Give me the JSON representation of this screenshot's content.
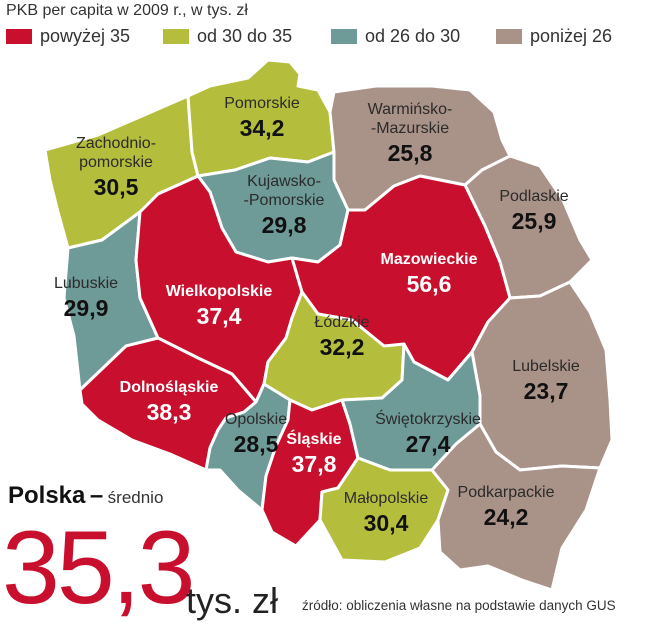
{
  "title": "PKB per capita w 2009 r., w tys. zł",
  "legend": [
    {
      "label": "powyżej 35",
      "color": "#c8102e"
    },
    {
      "label": "od 30 do 35",
      "color": "#b5bd3c"
    },
    {
      "label": "od 26 do 30",
      "color": "#6e9a97"
    },
    {
      "label": "poniżej 26",
      "color": "#a99288"
    }
  ],
  "regions": [
    {
      "id": "zachodniopomorskie",
      "name_lines": [
        "Zachodnio-",
        "pomorskie"
      ],
      "value": "30,5",
      "color": "#b5bd3c"
    },
    {
      "id": "pomorskie",
      "name_lines": [
        "Pomorskie"
      ],
      "value": "34,2",
      "color": "#b5bd3c"
    },
    {
      "id": "warminsko-mazurskie",
      "name_lines": [
        "Warmińsko-",
        "-Mazurskie"
      ],
      "value": "25,8",
      "color": "#a99288"
    },
    {
      "id": "podlaskie",
      "name_lines": [
        "Podlaskie"
      ],
      "value": "25,9",
      "color": "#a99288"
    },
    {
      "id": "kujawsko-pomorskie",
      "name_lines": [
        "Kujawsko-",
        "-Pomorskie"
      ],
      "value": "29,8",
      "color": "#6e9a97"
    },
    {
      "id": "lubuskie",
      "name_lines": [
        "Lubuskie"
      ],
      "value": "29,9",
      "color": "#6e9a97"
    },
    {
      "id": "wielkopolskie",
      "name_lines": [
        "Wielkopolskie"
      ],
      "value": "37,4",
      "color": "#c8102e"
    },
    {
      "id": "mazowieckie",
      "name_lines": [
        "Mazowieckie"
      ],
      "value": "56,6",
      "color": "#c8102e"
    },
    {
      "id": "lodzkie",
      "name_lines": [
        "Łódzkie"
      ],
      "value": "32,2",
      "color": "#b5bd3c"
    },
    {
      "id": "lubelskie",
      "name_lines": [
        "Lubelskie"
      ],
      "value": "23,7",
      "color": "#a99288"
    },
    {
      "id": "dolnoslaskie",
      "name_lines": [
        "Dolnośląskie"
      ],
      "value": "38,3",
      "color": "#c8102e"
    },
    {
      "id": "opolskie",
      "name_lines": [
        "Opolskie"
      ],
      "value": "28,5",
      "color": "#6e9a97"
    },
    {
      "id": "slaskie",
      "name_lines": [
        "Śląskie"
      ],
      "value": "37,8",
      "color": "#c8102e"
    },
    {
      "id": "swietokrzyskie",
      "name_lines": [
        "Świętokrzyskie"
      ],
      "value": "27,4",
      "color": "#6e9a97"
    },
    {
      "id": "malopolskie",
      "name_lines": [
        "Małopolskie"
      ],
      "value": "30,4",
      "color": "#b5bd3c"
    },
    {
      "id": "podkarpackie",
      "name_lines": [
        "Podkarpackie"
      ],
      "value": "24,2",
      "color": "#a99288"
    }
  ],
  "average": {
    "country": "Polska",
    "dash": "–",
    "label": "średnio",
    "value": "35,3",
    "unit": "tys. zł"
  },
  "source": "źródło: obliczenia własne na podstawie danych GUS"
}
